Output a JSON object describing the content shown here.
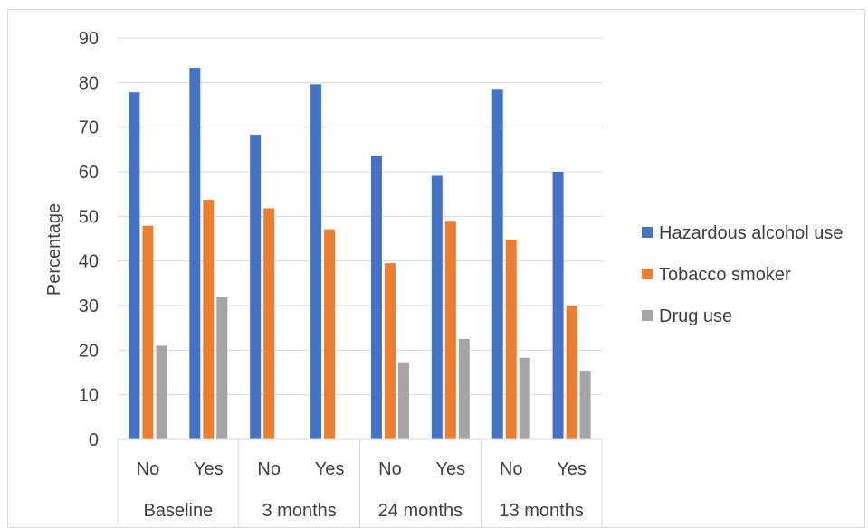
{
  "chart_data": {
    "type": "bar",
    "ylabel": "Percentage",
    "ylim": [
      0,
      90
    ],
    "yticks": [
      0,
      10,
      20,
      30,
      40,
      50,
      60,
      70,
      80,
      90
    ],
    "grid": true,
    "legend_position": "right",
    "groups": [
      {
        "label": "Baseline",
        "categories": [
          "No",
          "Yes"
        ]
      },
      {
        "label": "3 months",
        "categories": [
          "No",
          "Yes"
        ]
      },
      {
        "label": "24 months",
        "categories": [
          "No",
          "Yes"
        ]
      },
      {
        "label": "13 months",
        "categories": [
          "No",
          "Yes"
        ]
      }
    ],
    "series": [
      {
        "name": "Hazardous alcohol use",
        "color": "#4472C4",
        "values": [
          77.8,
          83.3,
          68.3,
          79.6,
          63.6,
          59.1,
          78.6,
          60.0
        ]
      },
      {
        "name": "Tobacco smoker",
        "color": "#ED7D31",
        "values": [
          47.9,
          53.7,
          51.8,
          47.1,
          39.5,
          49.0,
          44.8,
          30.0
        ]
      },
      {
        "name": "Drug use",
        "color": "#A5A5A5",
        "values": [
          21.0,
          32.0,
          null,
          null,
          17.3,
          22.5,
          18.3,
          15.4
        ]
      }
    ]
  }
}
